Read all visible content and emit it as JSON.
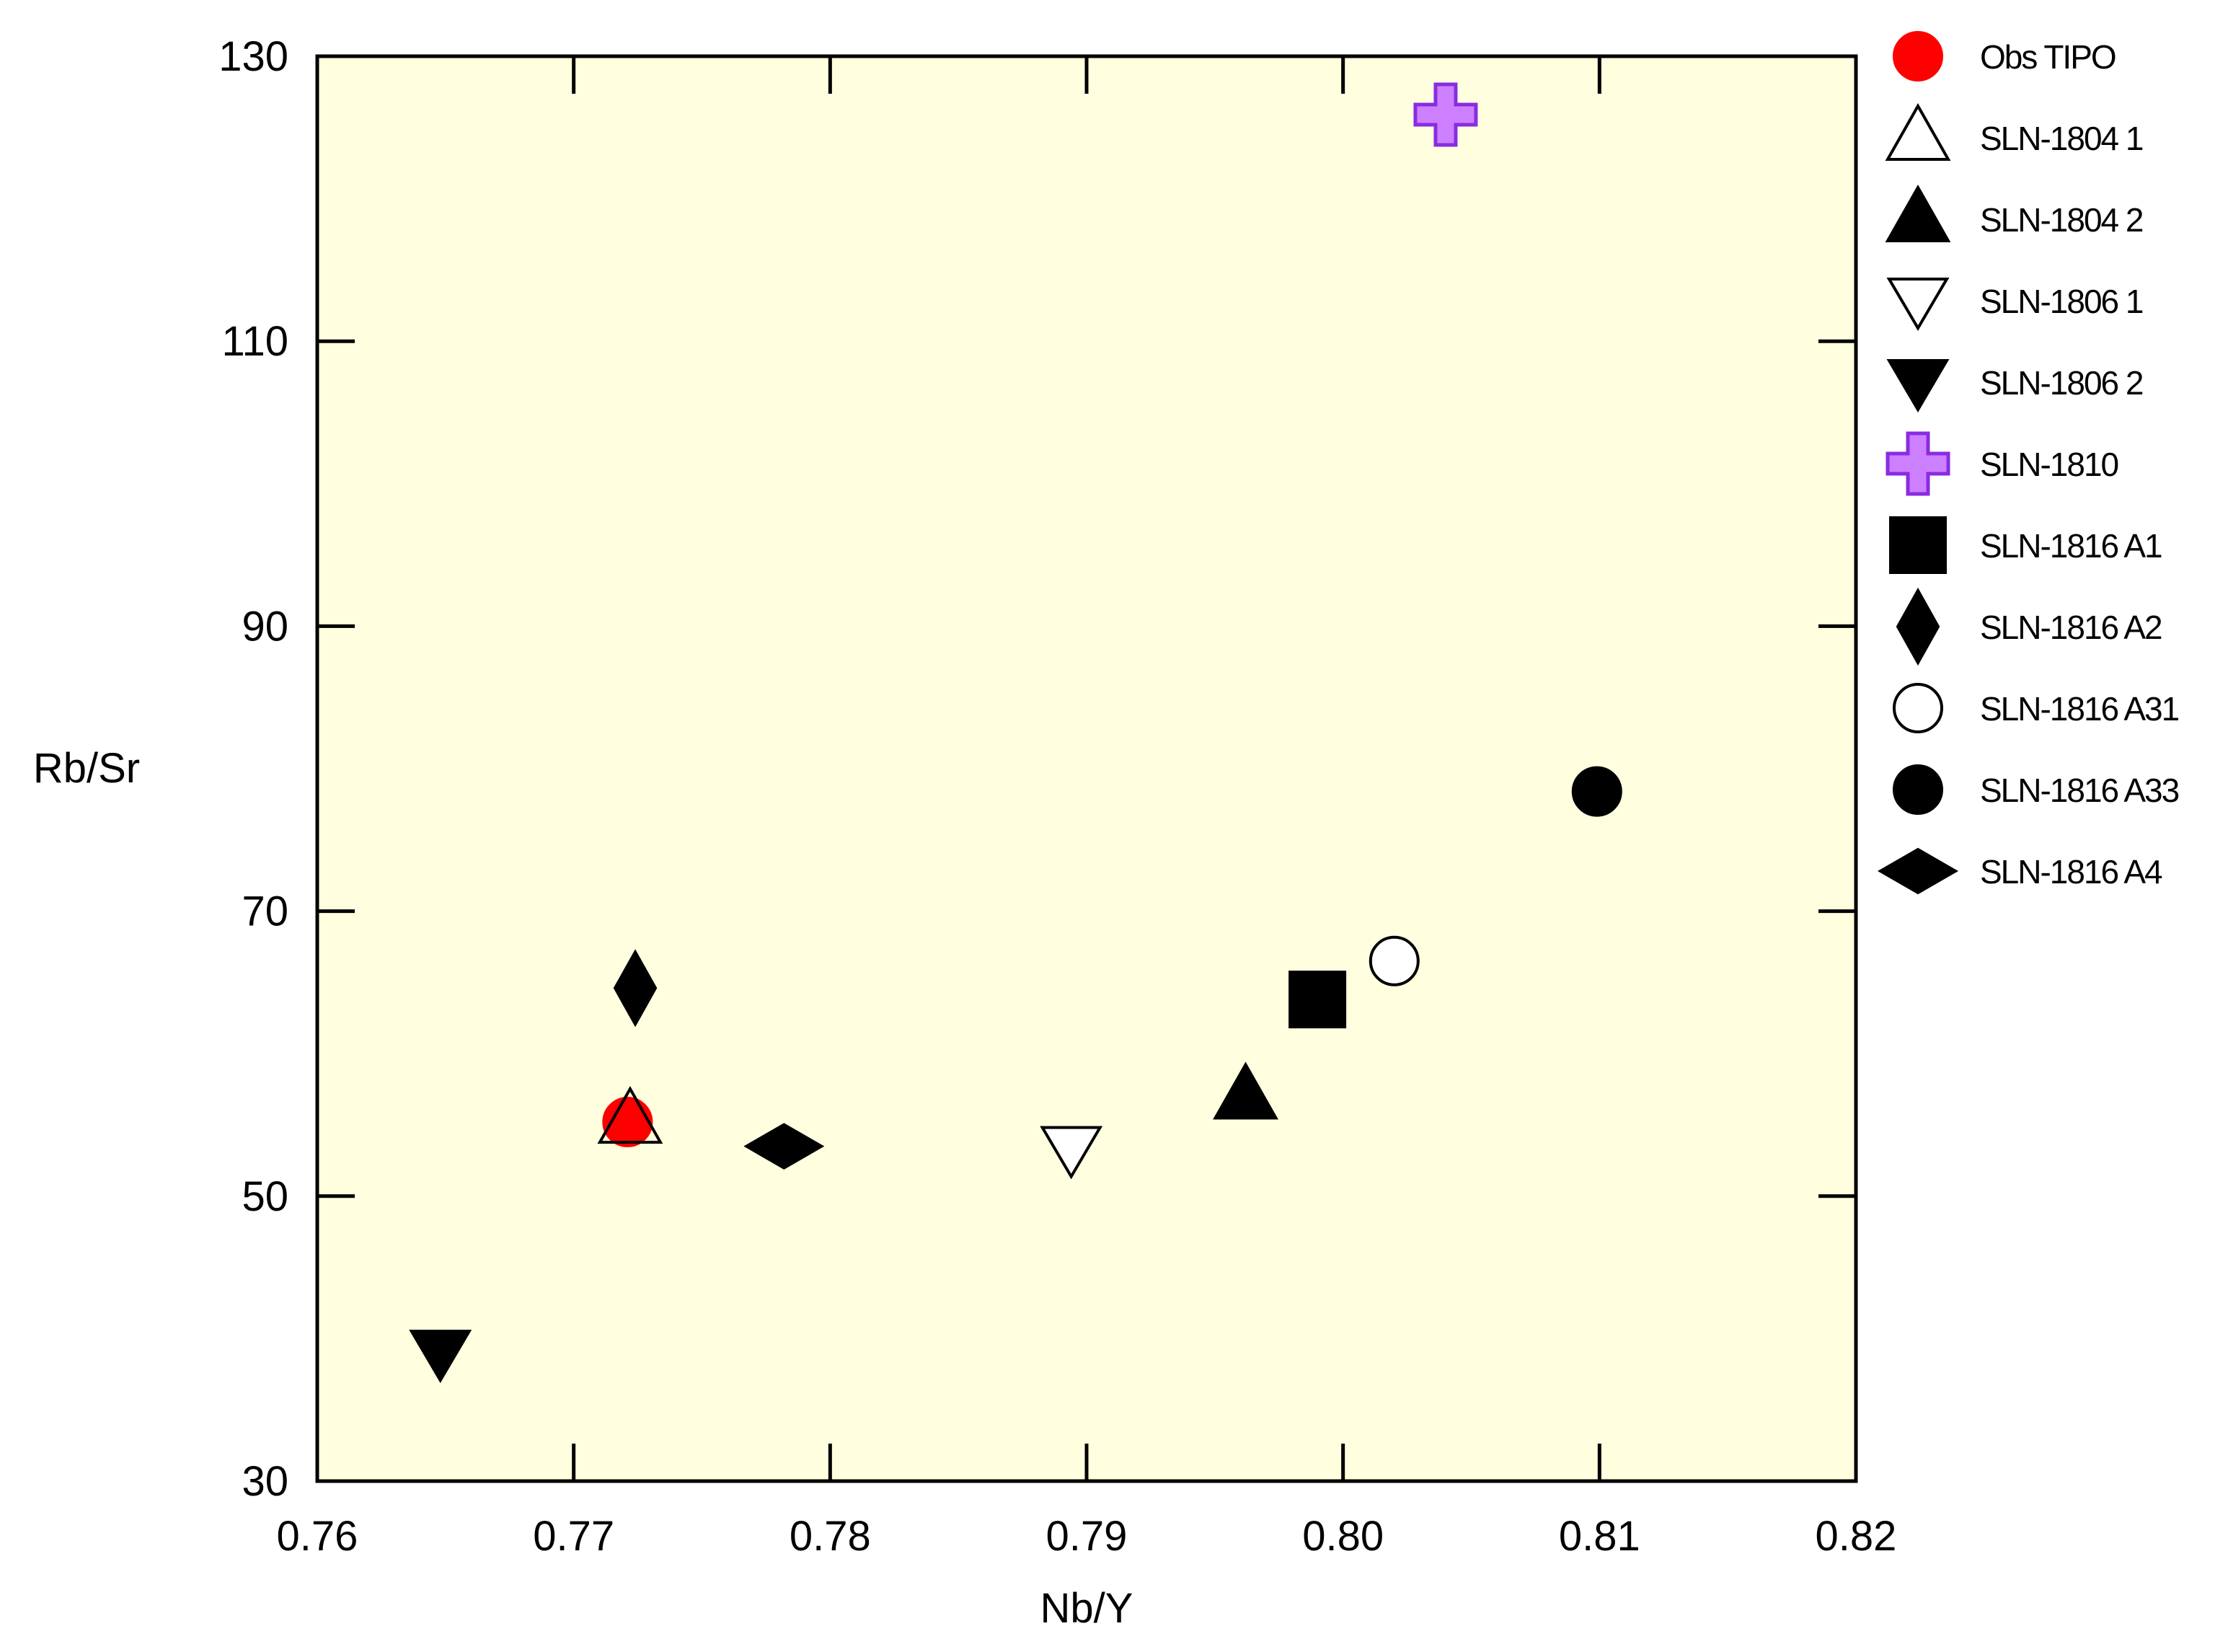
{
  "chart_data": {
    "type": "scatter",
    "xlabel": "Nb/Y",
    "ylabel": "Rb/Sr",
    "xlim": [
      0.76,
      0.82
    ],
    "ylim": [
      30,
      130
    ],
    "xticks": [
      "0.76",
      "0.77",
      "0.78",
      "0.79",
      "0.80",
      "0.81",
      "0.82"
    ],
    "yticks": [
      "30",
      "50",
      "70",
      "90",
      "110",
      "130"
    ],
    "grid": false,
    "legend_position": "right",
    "plot_background": "#ffffe0",
    "series": [
      {
        "name": "Obs TIPO",
        "marker": "circle-filled",
        "color": "#ff0000",
        "points": [
          {
            "x": 0.7721,
            "y": 55.2
          }
        ]
      },
      {
        "name": "SLN-1804 1",
        "marker": "triangle-up-open",
        "color": "#000000",
        "points": [
          {
            "x": 0.7722,
            "y": 55.3
          }
        ]
      },
      {
        "name": "SLN-1804 2",
        "marker": "triangle-up-filled",
        "color": "#000000",
        "points": [
          {
            "x": 0.7962,
            "y": 57.0
          }
        ]
      },
      {
        "name": "SLN-1806 1",
        "marker": "triangle-down-open",
        "color": "#000000",
        "points": [
          {
            "x": 0.7894,
            "y": 53.3
          }
        ]
      },
      {
        "name": "SLN-1806 2",
        "marker": "triangle-down-filled",
        "color": "#000000",
        "points": [
          {
            "x": 0.7648,
            "y": 39.0
          }
        ]
      },
      {
        "name": "SLN-1810",
        "marker": "plus",
        "color": "#cc80ff",
        "points": [
          {
            "x": 0.804,
            "y": 125.9
          }
        ]
      },
      {
        "name": "SLN-1816 A1",
        "marker": "square-filled",
        "color": "#000000",
        "points": [
          {
            "x": 0.799,
            "y": 63.8
          }
        ]
      },
      {
        "name": "SLN-1816 A2",
        "marker": "diamond-tall-filled",
        "color": "#000000",
        "points": [
          {
            "x": 0.7724,
            "y": 64.6
          }
        ]
      },
      {
        "name": "SLN-1816 A31",
        "marker": "circle-open",
        "color": "#000000",
        "points": [
          {
            "x": 0.802,
            "y": 66.5
          }
        ]
      },
      {
        "name": "SLN-1816 A33",
        "marker": "circle-filled",
        "color": "#000000",
        "points": [
          {
            "x": 0.8099,
            "y": 78.4
          }
        ]
      },
      {
        "name": "SLN-1816 A4",
        "marker": "diamond-wide-filled",
        "color": "#000000",
        "points": [
          {
            "x": 0.7782,
            "y": 53.5
          }
        ]
      }
    ]
  }
}
